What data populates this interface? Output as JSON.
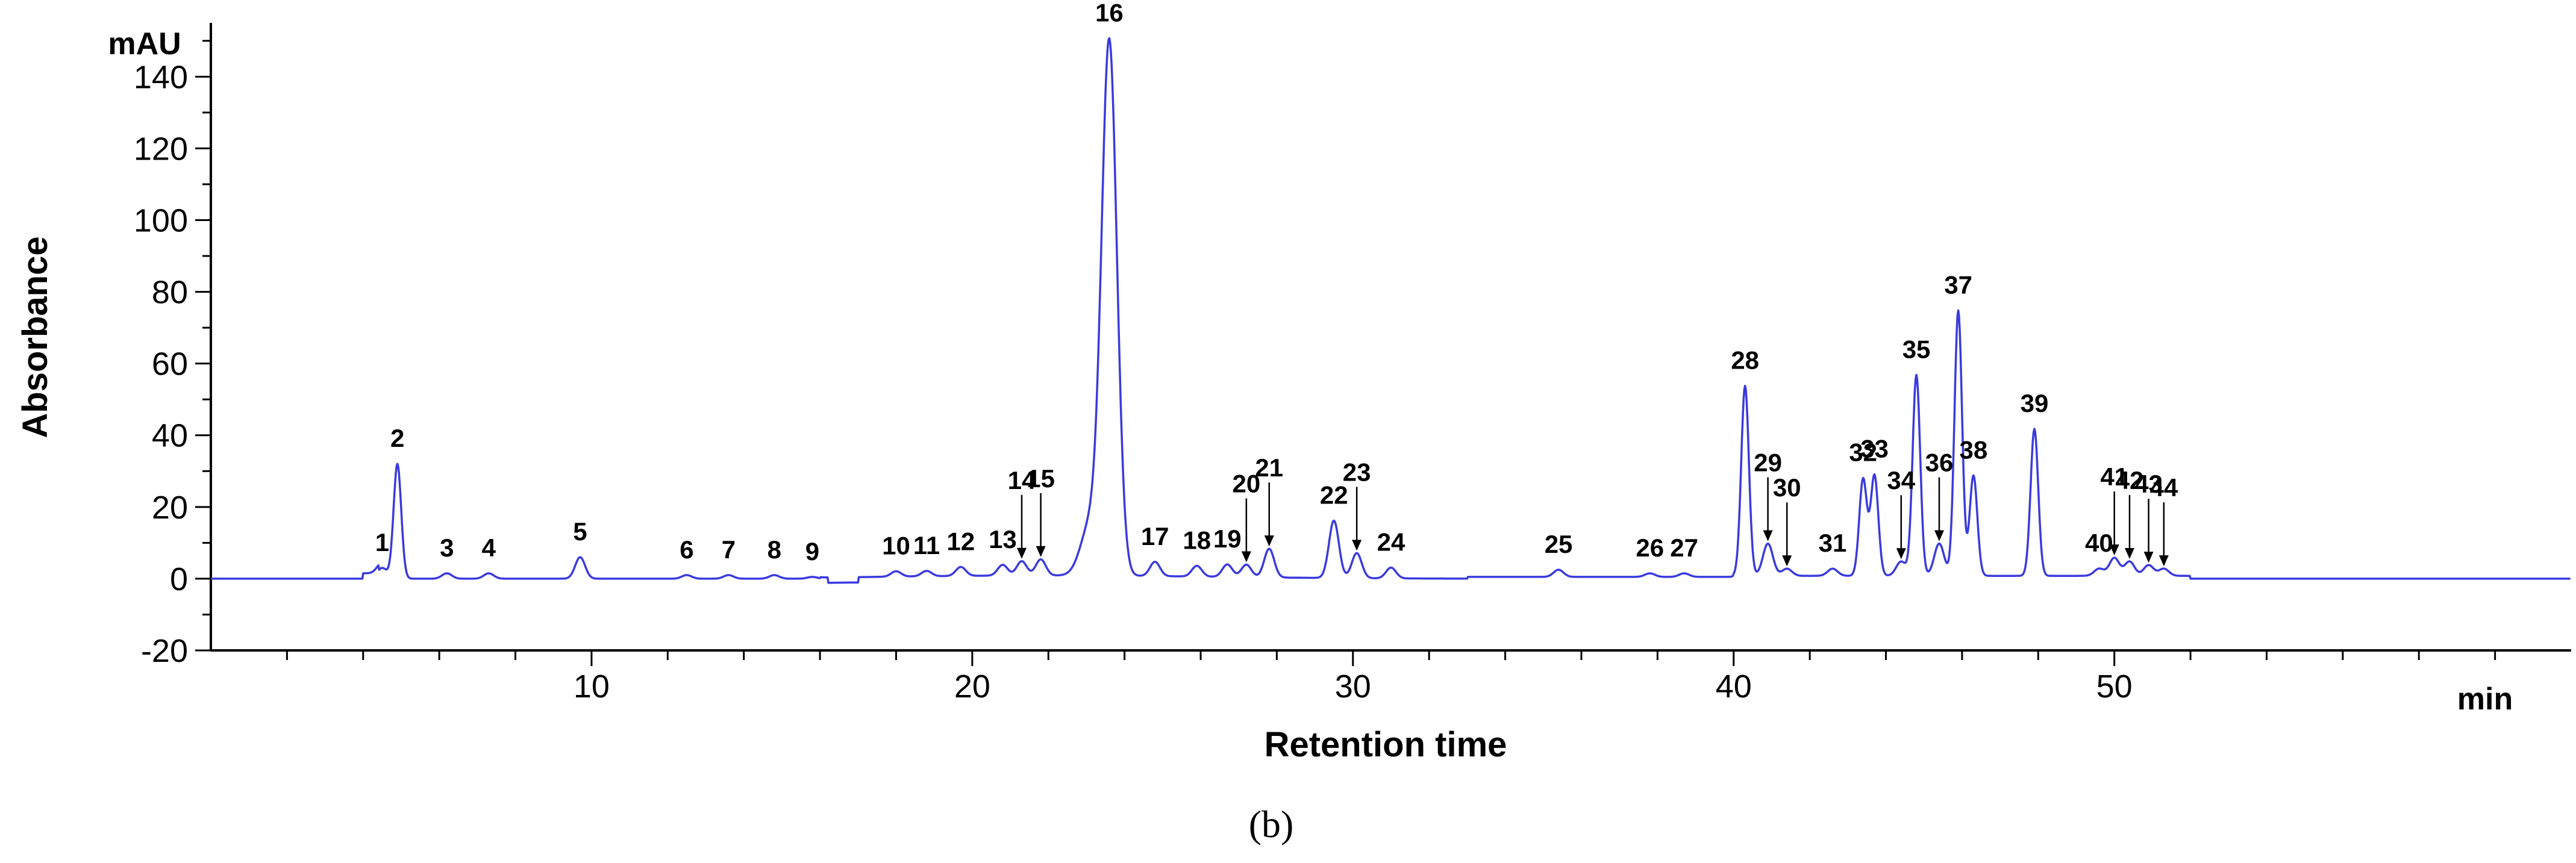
{
  "chart_data": {
    "type": "line",
    "panel_label": "(b)",
    "xlabel": "Retention time",
    "ylabel": "Absorbance",
    "x_unit": "min",
    "y_unit": "mAU",
    "xlim": [
      0,
      62
    ],
    "ylim": [
      -20,
      155
    ],
    "x_ticks": [
      10,
      20,
      30,
      40,
      50
    ],
    "y_ticks": [
      -20,
      0,
      20,
      40,
      60,
      80,
      100,
      120,
      140
    ],
    "line_color": "#3a3adf",
    "grid": false,
    "legend": "none",
    "peaks": [
      {
        "label": "1",
        "x": 4.5,
        "y": 3
      },
      {
        "label": "2",
        "x": 4.9,
        "y": 32
      },
      {
        "label": "3",
        "x": 6.2,
        "y": 1.5
      },
      {
        "label": "4",
        "x": 7.3,
        "y": 1.5
      },
      {
        "label": "5",
        "x": 9.7,
        "y": 6
      },
      {
        "label": "6",
        "x": 12.5,
        "y": 1
      },
      {
        "label": "7",
        "x": 13.6,
        "y": 1
      },
      {
        "label": "8",
        "x": 14.8,
        "y": 1
      },
      {
        "label": "9",
        "x": 15.8,
        "y": 0.5
      },
      {
        "label": "10",
        "x": 18.0,
        "y": 1.5
      },
      {
        "label": "11",
        "x": 18.8,
        "y": 1.5
      },
      {
        "label": "12",
        "x": 19.7,
        "y": 2.5
      },
      {
        "label": "13",
        "x": 20.8,
        "y": 3
      },
      {
        "label": "14",
        "x": 21.3,
        "y": 4
      },
      {
        "label": "15",
        "x": 21.8,
        "y": 4.5
      },
      {
        "label": "16",
        "x": 23.6,
        "y": 148
      },
      {
        "label": "17",
        "x": 24.8,
        "y": 4
      },
      {
        "label": "18",
        "x": 25.9,
        "y": 3
      },
      {
        "label": "19",
        "x": 26.7,
        "y": 3.5
      },
      {
        "label": "20",
        "x": 27.2,
        "y": 3.5
      },
      {
        "label": "21",
        "x": 27.8,
        "y": 8
      },
      {
        "label": "22",
        "x": 29.5,
        "y": 16
      },
      {
        "label": "23",
        "x": 30.1,
        "y": 7
      },
      {
        "label": "24",
        "x": 31.0,
        "y": 3
      },
      {
        "label": "25",
        "x": 35.4,
        "y": 2
      },
      {
        "label": "26",
        "x": 37.8,
        "y": 1
      },
      {
        "label": "27",
        "x": 38.7,
        "y": 1
      },
      {
        "label": "28",
        "x": 40.3,
        "y": 53
      },
      {
        "label": "29",
        "x": 40.9,
        "y": 9
      },
      {
        "label": "30",
        "x": 41.4,
        "y": 2
      },
      {
        "label": "31",
        "x": 42.6,
        "y": 2
      },
      {
        "label": "32",
        "x": 43.4,
        "y": 27
      },
      {
        "label": "33",
        "x": 43.7,
        "y": 28
      },
      {
        "label": "34",
        "x": 44.4,
        "y": 4
      },
      {
        "label": "35",
        "x": 44.8,
        "y": 56
      },
      {
        "label": "36",
        "x": 45.4,
        "y": 9
      },
      {
        "label": "37",
        "x": 45.9,
        "y": 74
      },
      {
        "label": "38",
        "x": 46.3,
        "y": 28
      },
      {
        "label": "39",
        "x": 47.9,
        "y": 41
      },
      {
        "label": "40",
        "x": 49.6,
        "y": 2
      },
      {
        "label": "41",
        "x": 50.0,
        "y": 5
      },
      {
        "label": "42",
        "x": 50.4,
        "y": 4
      },
      {
        "label": "43",
        "x": 50.9,
        "y": 3
      },
      {
        "label": "44",
        "x": 51.3,
        "y": 2
      }
    ]
  }
}
